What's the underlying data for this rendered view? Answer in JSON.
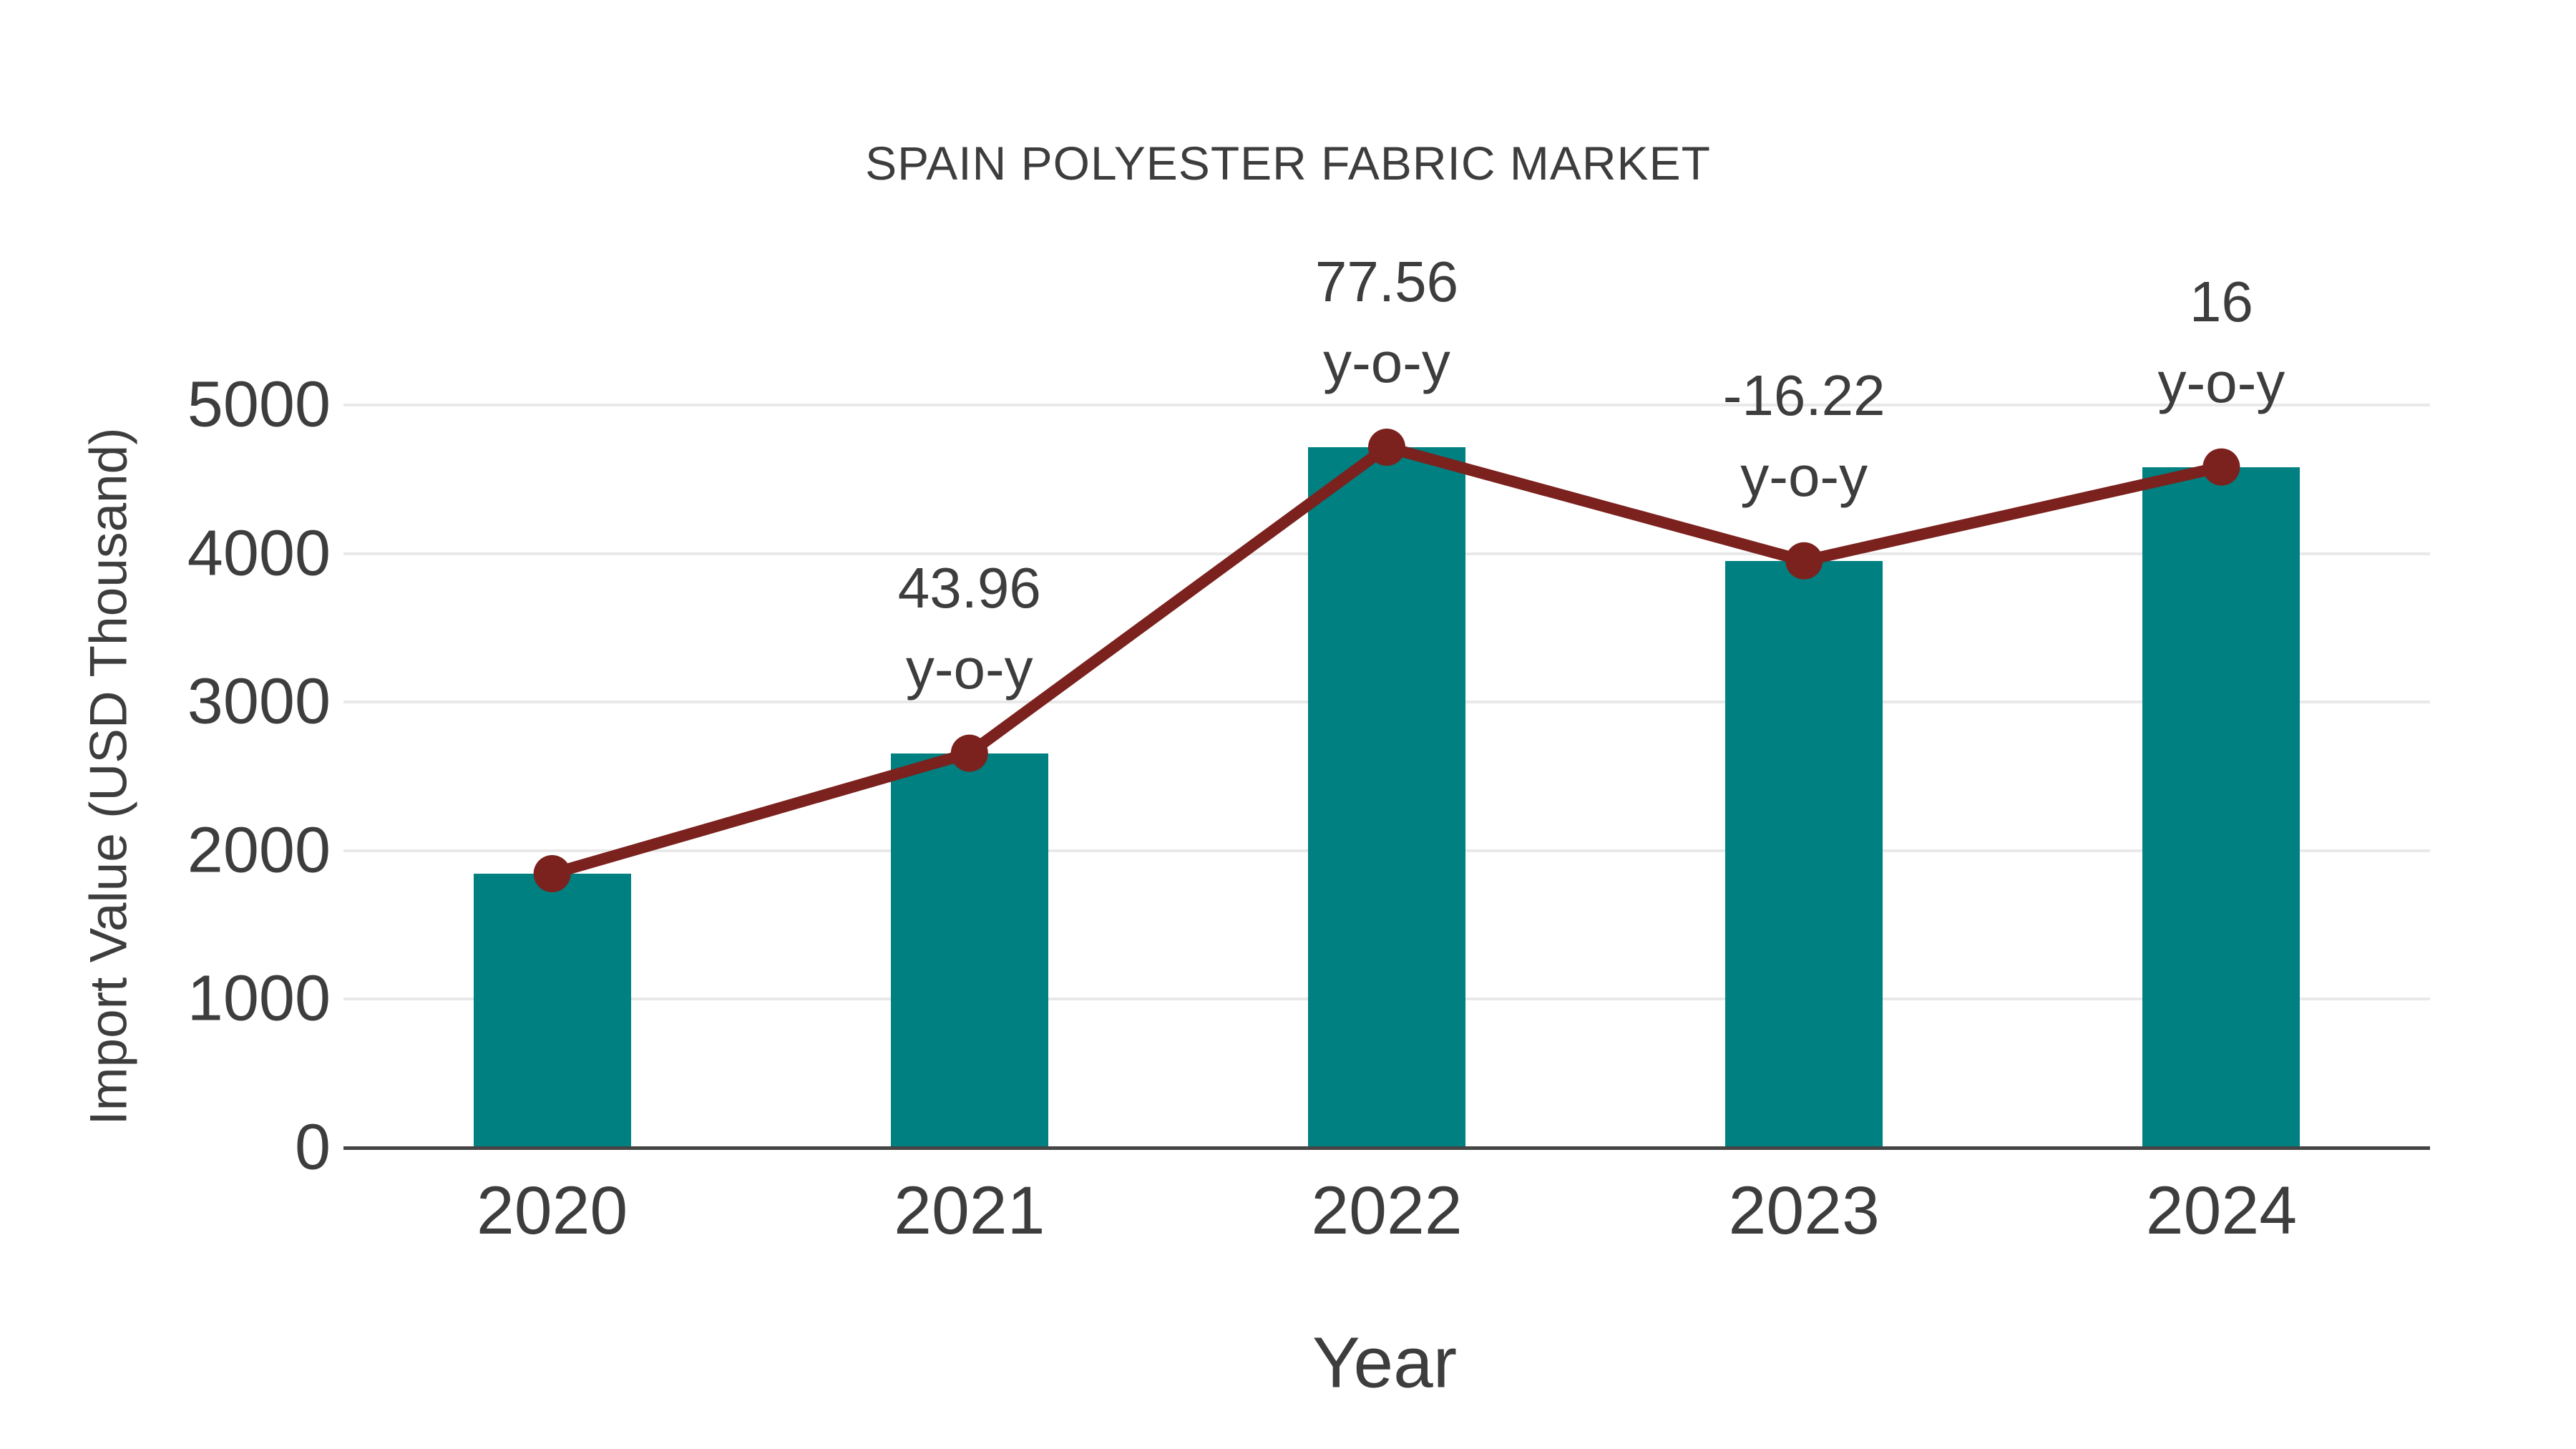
{
  "chart_data": {
    "type": "bar+line",
    "title": "SPAIN POLYESTER FABRIC MARKET",
    "xlabel": "Year",
    "ylabel": "Import Value (USD Thousand)",
    "categories": [
      "2020",
      "2021",
      "2022",
      "2023",
      "2024"
    ],
    "series": [
      {
        "name": "import-value-bars",
        "type": "bar",
        "color": "#008080",
        "values": [
          1845,
          2656,
          4716,
          3951,
          4583
        ]
      },
      {
        "name": "import-value-trend",
        "type": "line",
        "color": "#7b211e",
        "values": [
          1845,
          2656,
          4716,
          3951,
          4583
        ]
      }
    ],
    "annotations": [
      {
        "category": "2021",
        "label": "43.96",
        "sub": "y-o-y"
      },
      {
        "category": "2022",
        "label": "77.56",
        "sub": "y-o-y"
      },
      {
        "category": "2023",
        "label": "-16.22",
        "sub": "y-o-y"
      },
      {
        "category": "2024",
        "label": "16",
        "sub": "y-o-y"
      }
    ],
    "yticks": [
      "0",
      "1000",
      "2000",
      "3000",
      "4000",
      "5000"
    ],
    "ylim": [
      0,
      5000
    ],
    "grid": true,
    "legend_position": "none",
    "colors": {
      "bar": "#008080",
      "line": "#7b211e",
      "marker": "#7b211e",
      "text": "#3d3d3d",
      "gridline": "#e9e9e9",
      "axis": "#454545",
      "background": "#ffffff"
    }
  }
}
